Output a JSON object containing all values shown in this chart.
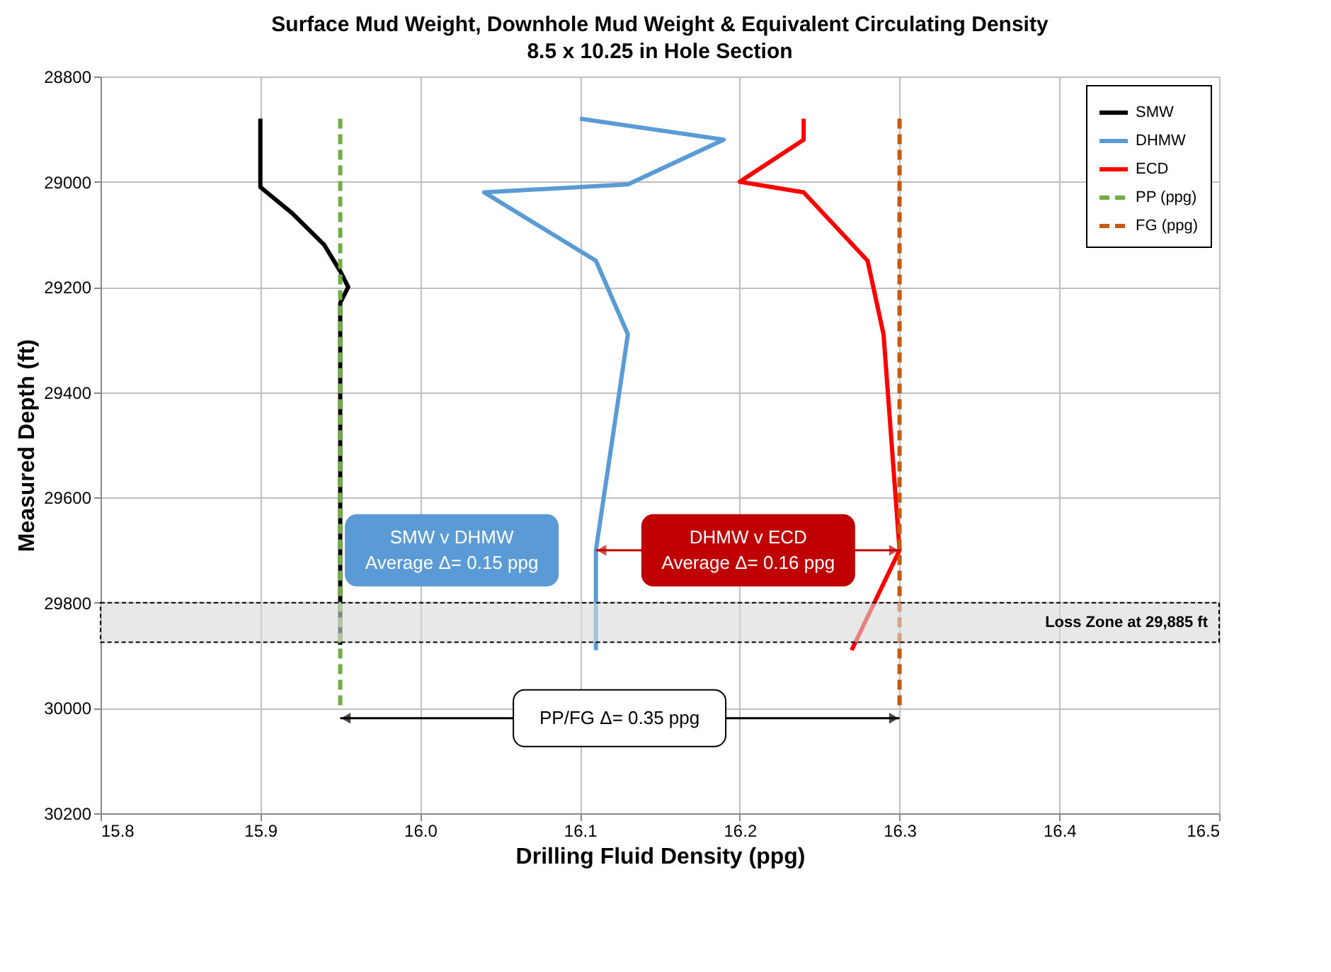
{
  "chart_data": {
    "type": "line",
    "title": "Surface Mud Weight, Downhole Mud Weight & Equivalent Circulating Density",
    "subtitle": "8.5 x 10.25 in Hole Section",
    "xlabel": "Drilling Fluid Density (ppg)",
    "ylabel": "Measured Depth (ft)",
    "xlim": [
      15.8,
      16.5
    ],
    "xticks": [
      15.8,
      15.9,
      {
        "value": 16,
        "label": "16.0"
      },
      16.1,
      16.2,
      16.3,
      16.4,
      16.5
    ],
    "ylim": [
      30200,
      28800
    ],
    "yticks": [
      28800,
      29000,
      29200,
      29400,
      29600,
      29800,
      30000,
      30200
    ],
    "grid": true,
    "legend": "top right",
    "marker": "none",
    "series": [
      {
        "name": "SMW",
        "color": "#000000",
        "line_style": "solid",
        "x": [
          15.9,
          15.9,
          15.9,
          15.92,
          15.94,
          15.95,
          15.955,
          15.95,
          15.95
        ],
        "values": [
          28880,
          29000,
          29010,
          29060,
          29120,
          29170,
          29200,
          29230,
          29880
        ]
      },
      {
        "name": "DHMW",
        "color": "#5b9bd5",
        "line_style": "solid",
        "x": [
          16.1,
          16.19,
          16.13,
          16.04,
          16.11,
          16.13,
          16.11,
          16.11
        ],
        "values": [
          28880,
          28920,
          29005,
          29020,
          29150,
          29290,
          29700,
          29890
        ]
      },
      {
        "name": "ECD",
        "color": "#ff0000",
        "line_style": "solid",
        "x": [
          16.24,
          16.24,
          16.2,
          16.24,
          16.28,
          16.29,
          16.3,
          16.27
        ],
        "values": [
          28880,
          28920,
          29000,
          29020,
          29150,
          29290,
          29700,
          29890
        ]
      },
      {
        "name": "PP (ppg)",
        "color": "#70ad47",
        "line_style": "dashed",
        "x": [
          15.95,
          15.95
        ],
        "values": [
          28880,
          30000
        ]
      },
      {
        "name": "FG (ppg)",
        "color": "#c55a11",
        "line_style": "dashed",
        "x": [
          16.3,
          16.3
        ],
        "values": [
          28880,
          30000
        ]
      }
    ],
    "bands": [
      {
        "axis": "y",
        "from": 29800,
        "to": 29875,
        "label": "Loss Zone at 29,885 ft",
        "color": "#d9d9d9"
      }
    ],
    "annotations": [
      "SMW v DHMW\nAverage Δ= 0.15 ppg",
      "DHMW v ECD\nAverage Δ= 0.16 ppg",
      "PP/FG Δ= 0.35 ppg"
    ]
  }
}
